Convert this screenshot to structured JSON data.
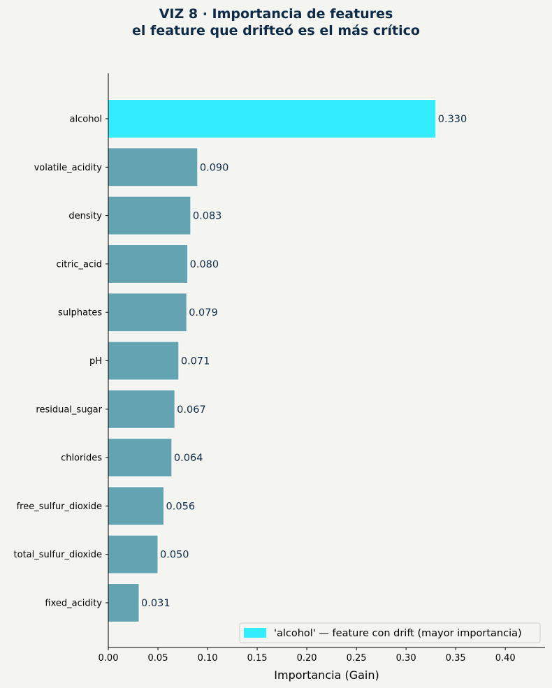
{
  "chart_data": {
    "type": "bar",
    "orientation": "horizontal",
    "title": "VIZ 8 · Importancia de features",
    "subtitle": "el feature que drifteó es el más crítico",
    "xlabel": "Importancia (Gain)",
    "ylabel": "",
    "xlim": [
      0.0,
      0.44
    ],
    "x_ticks": [
      "0.00",
      "0.05",
      "0.10",
      "0.15",
      "0.20",
      "0.25",
      "0.30",
      "0.35",
      "0.40"
    ],
    "categories": [
      "alcohol",
      "volatile_acidity",
      "density",
      "citric_acid",
      "sulphates",
      "pH",
      "residual_sugar",
      "chlorides",
      "free_sulfur_dioxide",
      "total_sulfur_dioxide",
      "fixed_acidity"
    ],
    "values": [
      0.33,
      0.09,
      0.083,
      0.08,
      0.079,
      0.071,
      0.067,
      0.064,
      0.056,
      0.05,
      0.031
    ],
    "value_labels": [
      "0.330",
      "0.090",
      "0.083",
      "0.080",
      "0.079",
      "0.071",
      "0.067",
      "0.064",
      "0.056",
      "0.050",
      "0.031"
    ],
    "highlight": "alcohol",
    "colors": {
      "highlight": "#33ecfd",
      "default": "#64a3b1",
      "label_text": "#0d2a47"
    },
    "legend": {
      "position": "bottom-right",
      "entries": [
        "'alcohol' — feature con drift (mayor importancia)"
      ]
    },
    "grid": false
  }
}
